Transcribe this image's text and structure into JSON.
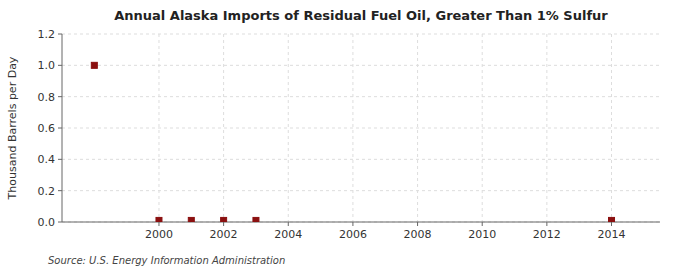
{
  "chart_data": {
    "type": "scatter",
    "title": "Annual Alaska Imports of Residual Fuel Oil, Greater Than 1% Sulfur",
    "ylabel": "Thousand Barrels per Day",
    "source": "Source: U.S. Energy Information Administration",
    "x": [
      1998,
      2000,
      2001,
      2002,
      2003,
      2014
    ],
    "values": [
      1.0,
      0.01,
      0.01,
      0.01,
      0.01,
      0.01
    ],
    "color": "#8B1010",
    "marker": "square",
    "xlim": [
      1997.0,
      2015.5
    ],
    "ylim": [
      0.0,
      1.2
    ],
    "xticks": [
      2000,
      2002,
      2004,
      2006,
      2008,
      2010,
      2012,
      2014
    ],
    "yticks": [
      {
        "value": 0.0,
        "label": "0.0"
      },
      0.2,
      0.4,
      0.6,
      0.8,
      {
        "value": 1.0,
        "label": "1.0"
      },
      1.2
    ],
    "grid": true
  }
}
